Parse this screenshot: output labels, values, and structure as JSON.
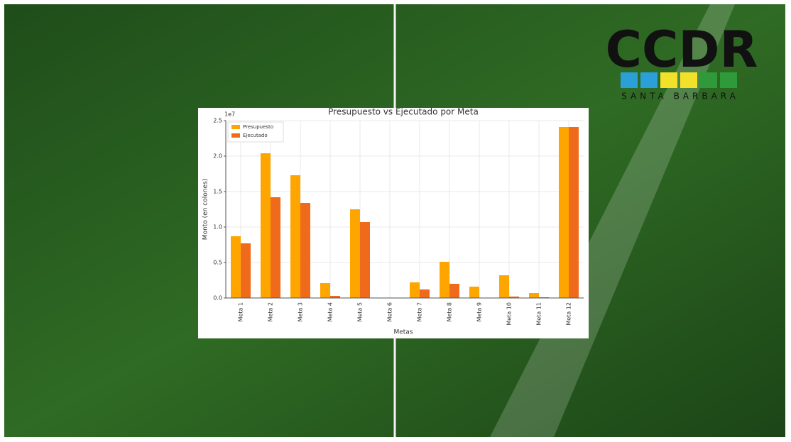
{
  "logo": {
    "title": "CCDR",
    "subtitle": "SANTA BARBARA"
  },
  "chart_data": {
    "type": "bar",
    "title": "Presupuesto vs Ejecutado por Meta",
    "x_label": "Metas",
    "y_label": "Monto (en colones)",
    "y_offset": "1e7",
    "categories": [
      "Meta 1",
      "Meta 2",
      "Meta 3",
      "Meta 4",
      "Meta 5",
      "Meta 6",
      "Meta 7",
      "Meta 8",
      "Meta 9",
      "Meta 10",
      "Meta 11",
      "Meta 12"
    ],
    "series": [
      {
        "name": "Presupuesto",
        "color": "#ffa500",
        "values": [
          0.87,
          2.04,
          1.73,
          0.21,
          1.25,
          0,
          0.22,
          0.51,
          0.16,
          0.32,
          0.07,
          2.41
        ]
      },
      {
        "name": "Ejecutado",
        "color": "#f06a1c",
        "values": [
          0.77,
          1.42,
          1.34,
          0.03,
          1.07,
          0,
          0.12,
          0.2,
          0,
          0.02,
          0.01,
          2.41
        ]
      }
    ],
    "ylim": [
      0,
      2.5
    ],
    "yticks": [
      {
        "value": 0,
        "label": "0.0"
      },
      0.5,
      {
        "value": 1,
        "label": "1.0"
      },
      1.5,
      {
        "value": 2,
        "label": "2.0"
      },
      2.5
    ],
    "grid": true,
    "legend": "upper-left"
  }
}
